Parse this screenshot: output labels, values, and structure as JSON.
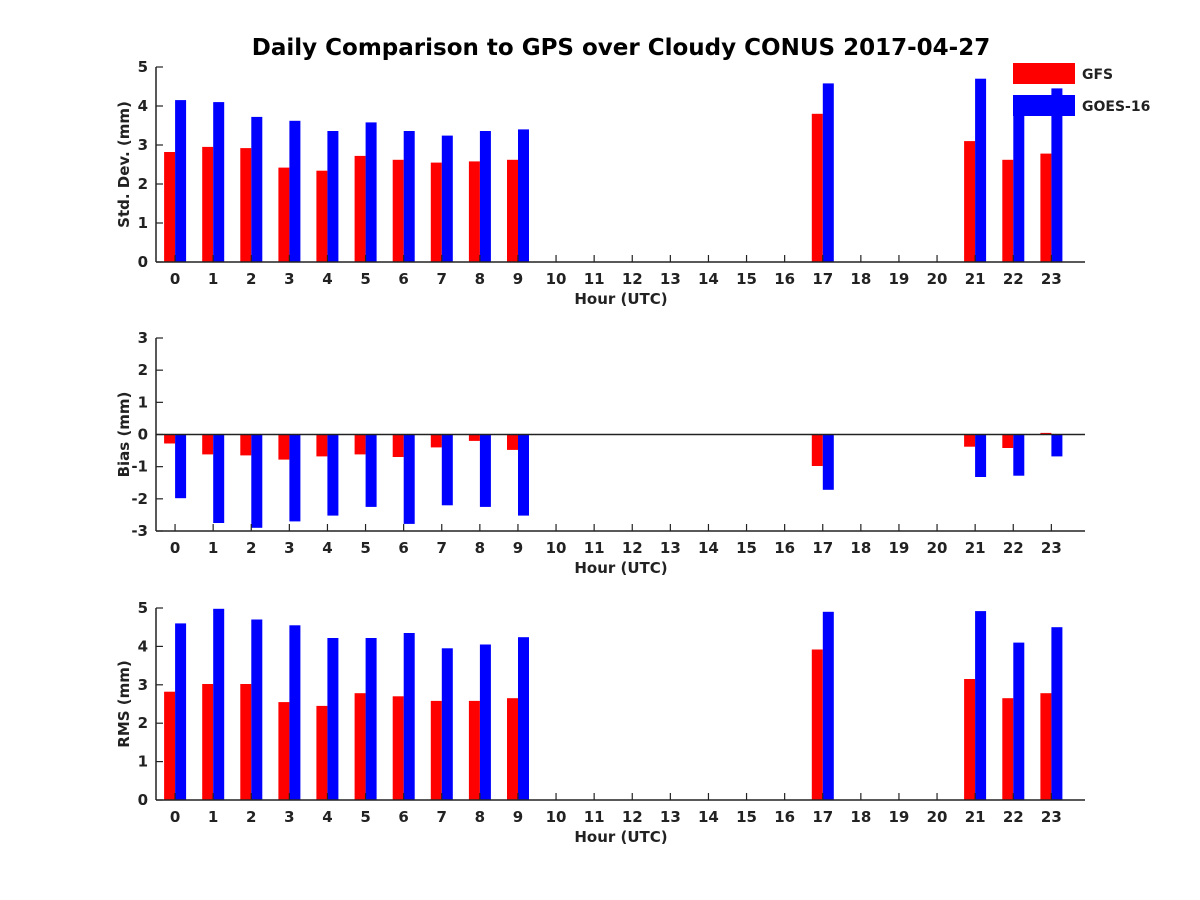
{
  "chart_data": {
    "title": "Daily Comparison to GPS over Cloudy CONUS 2017-04-27",
    "legend": {
      "placement": "top-right",
      "entries": [
        {
          "name": "GFS",
          "color": "#ff0000"
        },
        {
          "name": "GOES-16",
          "color": "#0000ff"
        }
      ]
    },
    "panels": [
      {
        "type": "bar",
        "xlabel": "Hour (UTC)",
        "ylabel": "Std. Dev. (mm)",
        "ylim": [
          0,
          5
        ],
        "yticks": [
          "0",
          "1",
          "2",
          "3",
          "4",
          "5"
        ],
        "categories": [
          "0",
          "1",
          "2",
          "3",
          "4",
          "5",
          "6",
          "7",
          "8",
          "9",
          "10",
          "11",
          "12",
          "13",
          "14",
          "15",
          "16",
          "17",
          "18",
          "19",
          "20",
          "21",
          "22",
          "23"
        ],
        "series": [
          {
            "name": "GFS",
            "color": "#ff0000",
            "values": [
              2.82,
              2.95,
              2.92,
              2.42,
              2.34,
              2.72,
              2.62,
              2.55,
              2.58,
              2.62,
              null,
              null,
              null,
              null,
              null,
              null,
              null,
              3.8,
              null,
              null,
              null,
              3.1,
              2.62,
              2.78
            ]
          },
          {
            "name": "GOES-16",
            "color": "#0000ff",
            "values": [
              4.15,
              4.1,
              3.72,
              3.62,
              3.36,
              3.58,
              3.36,
              3.24,
              3.36,
              3.4,
              null,
              null,
              null,
              null,
              null,
              null,
              null,
              4.58,
              null,
              null,
              null,
              4.7,
              3.9,
              4.45
            ]
          }
        ]
      },
      {
        "type": "bar",
        "xlabel": "Hour (UTC)",
        "ylabel": "Bias (mm)",
        "ylim": [
          -3,
          3
        ],
        "yticks": [
          "-3",
          "-2",
          "-1",
          "0",
          "1",
          "2",
          "3"
        ],
        "categories": [
          "0",
          "1",
          "2",
          "3",
          "4",
          "5",
          "6",
          "7",
          "8",
          "9",
          "10",
          "11",
          "12",
          "13",
          "14",
          "15",
          "16",
          "17",
          "18",
          "19",
          "20",
          "21",
          "22",
          "23"
        ],
        "series": [
          {
            "name": "GFS",
            "color": "#ff0000",
            "values": [
              -0.28,
              -0.62,
              -0.65,
              -0.78,
              -0.68,
              -0.62,
              -0.7,
              -0.4,
              -0.2,
              -0.48,
              null,
              null,
              null,
              null,
              null,
              null,
              null,
              -0.98,
              null,
              null,
              null,
              -0.38,
              -0.42,
              0.05
            ]
          },
          {
            "name": "GOES-16",
            "color": "#0000ff",
            "values": [
              -1.98,
              -2.75,
              -2.9,
              -2.7,
              -2.52,
              -2.25,
              -2.78,
              -2.2,
              -2.25,
              -2.52,
              null,
              null,
              null,
              null,
              null,
              null,
              null,
              -1.72,
              null,
              null,
              null,
              -1.32,
              -1.28,
              -0.68
            ]
          }
        ]
      },
      {
        "type": "bar",
        "xlabel": "Hour (UTC)",
        "ylabel": "RMS (mm)",
        "ylim": [
          0,
          5
        ],
        "yticks": [
          "0",
          "1",
          "2",
          "3",
          "4",
          "5"
        ],
        "categories": [
          "0",
          "1",
          "2",
          "3",
          "4",
          "5",
          "6",
          "7",
          "8",
          "9",
          "10",
          "11",
          "12",
          "13",
          "14",
          "15",
          "16",
          "17",
          "18",
          "19",
          "20",
          "21",
          "22",
          "23"
        ],
        "series": [
          {
            "name": "GFS",
            "color": "#ff0000",
            "values": [
              2.82,
              3.02,
              3.02,
              2.55,
              2.45,
              2.78,
              2.7,
              2.58,
              2.58,
              2.65,
              null,
              null,
              null,
              null,
              null,
              null,
              null,
              3.92,
              null,
              null,
              null,
              3.15,
              2.65,
              2.78
            ]
          },
          {
            "name": "GOES-16",
            "color": "#0000ff",
            "values": [
              4.6,
              4.98,
              4.7,
              4.55,
              4.22,
              4.22,
              4.35,
              3.95,
              4.05,
              4.24,
              null,
              null,
              null,
              null,
              null,
              null,
              null,
              4.9,
              null,
              null,
              null,
              4.92,
              4.1,
              4.5
            ]
          }
        ]
      }
    ]
  }
}
